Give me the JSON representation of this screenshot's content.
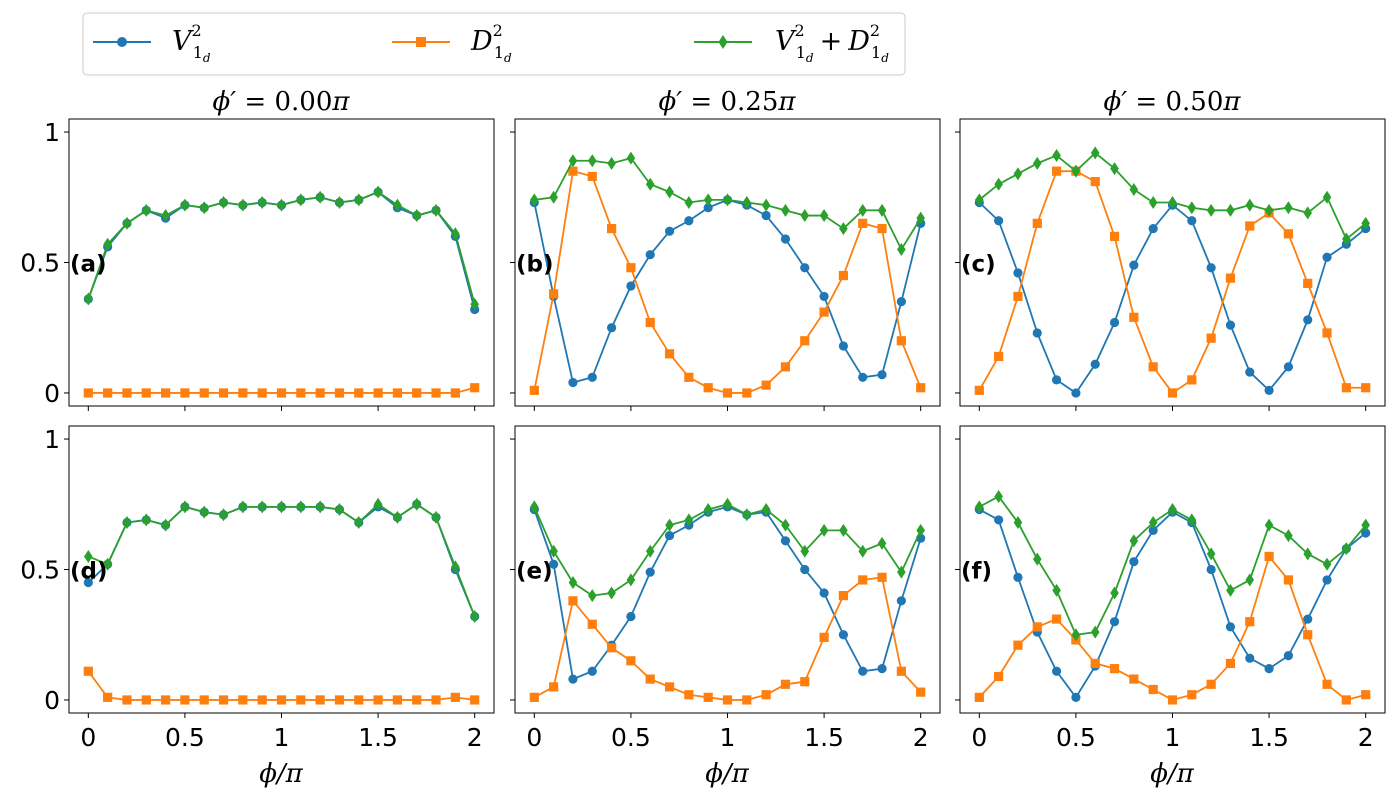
{
  "figure_title": "",
  "legend": [
    {
      "key": "V",
      "color": "#1f77b4",
      "marker": "circle",
      "text": {
        "base": "V",
        "sup": "2",
        "sub": "1",
        "subsub": "d"
      }
    },
    {
      "key": "D",
      "color": "#ff7f0e",
      "marker": "square",
      "text": {
        "base": "D",
        "sup": "2",
        "sub": "1",
        "subsub": "d"
      }
    },
    {
      "key": "S",
      "color": "#2ca02c",
      "marker": "diamond",
      "text": {
        "base": "V",
        "sup": "2",
        "sub": "1",
        "subsub": "d",
        "plus": "+",
        "base2": "D"
      }
    }
  ],
  "column_titles": [
    {
      "prefix": "ϕ′ = ",
      "value": "0.00",
      "suffix": "π"
    },
    {
      "prefix": "ϕ′ = ",
      "value": "0.25",
      "suffix": "π"
    },
    {
      "prefix": "ϕ′ = ",
      "value": "0.50",
      "suffix": "π"
    }
  ],
  "xlabel": "ϕ/π",
  "x_tick_labels": [
    "0",
    "0.5",
    "1",
    "1.5",
    "2"
  ],
  "y_tick_labels": [
    "0",
    "0.5",
    "1"
  ],
  "chart_data": [
    {
      "type": "line",
      "panel": "(a)",
      "x": [
        0,
        0.1,
        0.2,
        0.3,
        0.4,
        0.5,
        0.6,
        0.7,
        0.8,
        0.9,
        1.0,
        1.1,
        1.2,
        1.3,
        1.4,
        1.5,
        1.6,
        1.7,
        1.8,
        1.9,
        2.0
      ],
      "xlim": [
        -0.1,
        2.1
      ],
      "ylim": [
        -0.05,
        1.05
      ],
      "series": [
        {
          "name": "V",
          "values": [
            0.36,
            0.56,
            0.65,
            0.7,
            0.67,
            0.72,
            0.71,
            0.73,
            0.72,
            0.73,
            0.72,
            0.74,
            0.75,
            0.73,
            0.74,
            0.77,
            0.71,
            0.68,
            0.7,
            0.6,
            0.32
          ]
        },
        {
          "name": "D",
          "values": [
            0.0,
            0.0,
            0.0,
            0.0,
            0.0,
            0.0,
            0.0,
            0.0,
            0.0,
            0.0,
            0.0,
            0.0,
            0.0,
            0.0,
            0.0,
            0.0,
            0.0,
            0.0,
            0.0,
            0.0,
            0.02
          ]
        },
        {
          "name": "S",
          "values": [
            0.36,
            0.57,
            0.65,
            0.7,
            0.68,
            0.72,
            0.71,
            0.73,
            0.72,
            0.73,
            0.72,
            0.74,
            0.75,
            0.73,
            0.74,
            0.77,
            0.72,
            0.68,
            0.7,
            0.61,
            0.34
          ]
        }
      ]
    },
    {
      "type": "line",
      "panel": "(b)",
      "x": [
        0,
        0.1,
        0.2,
        0.3,
        0.4,
        0.5,
        0.6,
        0.7,
        0.8,
        0.9,
        1.0,
        1.1,
        1.2,
        1.3,
        1.4,
        1.5,
        1.6,
        1.7,
        1.8,
        1.9,
        2.0
      ],
      "xlim": [
        -0.1,
        2.1
      ],
      "ylim": [
        -0.05,
        1.05
      ],
      "series": [
        {
          "name": "V",
          "values": [
            0.73,
            0.37,
            0.04,
            0.06,
            0.25,
            0.41,
            0.53,
            0.62,
            0.66,
            0.71,
            0.74,
            0.72,
            0.68,
            0.59,
            0.48,
            0.37,
            0.18,
            0.06,
            0.07,
            0.35,
            0.65
          ]
        },
        {
          "name": "D",
          "values": [
            0.01,
            0.38,
            0.85,
            0.83,
            0.63,
            0.48,
            0.27,
            0.15,
            0.06,
            0.02,
            0.0,
            0.0,
            0.03,
            0.1,
            0.2,
            0.31,
            0.45,
            0.65,
            0.63,
            0.2,
            0.02
          ]
        },
        {
          "name": "S",
          "values": [
            0.74,
            0.75,
            0.89,
            0.89,
            0.88,
            0.9,
            0.8,
            0.77,
            0.73,
            0.74,
            0.74,
            0.73,
            0.72,
            0.7,
            0.68,
            0.68,
            0.63,
            0.7,
            0.7,
            0.55,
            0.67
          ]
        }
      ]
    },
    {
      "type": "line",
      "panel": "(c)",
      "x": [
        0,
        0.1,
        0.2,
        0.3,
        0.4,
        0.5,
        0.6,
        0.7,
        0.8,
        0.9,
        1.0,
        1.1,
        1.2,
        1.3,
        1.4,
        1.5,
        1.6,
        1.7,
        1.8,
        1.9,
        2.0
      ],
      "xlim": [
        -0.1,
        2.1
      ],
      "ylim": [
        -0.05,
        1.05
      ],
      "series": [
        {
          "name": "V",
          "values": [
            0.73,
            0.66,
            0.46,
            0.23,
            0.05,
            0.0,
            0.11,
            0.27,
            0.49,
            0.63,
            0.72,
            0.66,
            0.48,
            0.26,
            0.08,
            0.01,
            0.1,
            0.28,
            0.52,
            0.57,
            0.63
          ]
        },
        {
          "name": "D",
          "values": [
            0.01,
            0.14,
            0.37,
            0.65,
            0.85,
            0.85,
            0.81,
            0.6,
            0.29,
            0.1,
            0.0,
            0.05,
            0.21,
            0.44,
            0.64,
            0.69,
            0.61,
            0.42,
            0.23,
            0.02,
            0.02
          ]
        },
        {
          "name": "S",
          "values": [
            0.74,
            0.8,
            0.84,
            0.88,
            0.91,
            0.85,
            0.92,
            0.86,
            0.78,
            0.73,
            0.73,
            0.71,
            0.7,
            0.7,
            0.72,
            0.7,
            0.71,
            0.69,
            0.75,
            0.59,
            0.65
          ]
        }
      ]
    },
    {
      "type": "line",
      "panel": "(d)",
      "x": [
        0,
        0.1,
        0.2,
        0.3,
        0.4,
        0.5,
        0.6,
        0.7,
        0.8,
        0.9,
        1.0,
        1.1,
        1.2,
        1.3,
        1.4,
        1.5,
        1.6,
        1.7,
        1.8,
        1.9,
        2.0
      ],
      "xlim": [
        -0.1,
        2.1
      ],
      "ylim": [
        -0.05,
        1.05
      ],
      "series": [
        {
          "name": "V",
          "values": [
            0.45,
            0.52,
            0.68,
            0.69,
            0.67,
            0.74,
            0.72,
            0.71,
            0.74,
            0.74,
            0.74,
            0.74,
            0.74,
            0.73,
            0.68,
            0.74,
            0.7,
            0.75,
            0.7,
            0.5,
            0.32
          ]
        },
        {
          "name": "D",
          "values": [
            0.11,
            0.01,
            0.0,
            0.0,
            0.0,
            0.0,
            0.0,
            0.0,
            0.0,
            0.0,
            0.0,
            0.0,
            0.0,
            0.0,
            0.0,
            0.0,
            0.0,
            0.0,
            0.0,
            0.01,
            0.0
          ]
        },
        {
          "name": "S",
          "values": [
            0.55,
            0.52,
            0.68,
            0.69,
            0.67,
            0.74,
            0.72,
            0.71,
            0.74,
            0.74,
            0.74,
            0.74,
            0.74,
            0.73,
            0.68,
            0.75,
            0.7,
            0.75,
            0.7,
            0.51,
            0.32
          ]
        }
      ]
    },
    {
      "type": "line",
      "panel": "(e)",
      "x": [
        0,
        0.1,
        0.2,
        0.3,
        0.4,
        0.5,
        0.6,
        0.7,
        0.8,
        0.9,
        1.0,
        1.1,
        1.2,
        1.3,
        1.4,
        1.5,
        1.6,
        1.7,
        1.8,
        1.9,
        2.0
      ],
      "xlim": [
        -0.1,
        2.1
      ],
      "ylim": [
        -0.05,
        1.05
      ],
      "series": [
        {
          "name": "V",
          "values": [
            0.73,
            0.52,
            0.08,
            0.11,
            0.21,
            0.32,
            0.49,
            0.63,
            0.67,
            0.72,
            0.74,
            0.71,
            0.72,
            0.61,
            0.5,
            0.41,
            0.25,
            0.11,
            0.12,
            0.38,
            0.62
          ]
        },
        {
          "name": "D",
          "values": [
            0.01,
            0.05,
            0.38,
            0.29,
            0.2,
            0.15,
            0.08,
            0.05,
            0.02,
            0.01,
            0.0,
            0.0,
            0.02,
            0.06,
            0.07,
            0.24,
            0.4,
            0.46,
            0.47,
            0.11,
            0.03
          ]
        },
        {
          "name": "S",
          "values": [
            0.74,
            0.57,
            0.45,
            0.4,
            0.41,
            0.46,
            0.57,
            0.67,
            0.69,
            0.73,
            0.75,
            0.71,
            0.73,
            0.67,
            0.57,
            0.65,
            0.65,
            0.57,
            0.6,
            0.49,
            0.65
          ]
        }
      ]
    },
    {
      "type": "line",
      "panel": "(f)",
      "x": [
        0,
        0.1,
        0.2,
        0.3,
        0.4,
        0.5,
        0.6,
        0.7,
        0.8,
        0.9,
        1.0,
        1.1,
        1.2,
        1.3,
        1.4,
        1.5,
        1.6,
        1.7,
        1.8,
        1.9,
        2.0
      ],
      "xlim": [
        -0.1,
        2.1
      ],
      "ylim": [
        -0.05,
        1.05
      ],
      "series": [
        {
          "name": "V",
          "values": [
            0.73,
            0.69,
            0.47,
            0.26,
            0.11,
            0.01,
            0.13,
            0.3,
            0.53,
            0.65,
            0.72,
            0.68,
            0.5,
            0.28,
            0.16,
            0.12,
            0.17,
            0.31,
            0.46,
            0.58,
            0.64
          ]
        },
        {
          "name": "D",
          "values": [
            0.01,
            0.09,
            0.21,
            0.28,
            0.31,
            0.23,
            0.14,
            0.12,
            0.08,
            0.04,
            0.0,
            0.02,
            0.06,
            0.14,
            0.3,
            0.55,
            0.46,
            0.25,
            0.06,
            0.0,
            0.02
          ]
        },
        {
          "name": "S",
          "values": [
            0.74,
            0.78,
            0.68,
            0.54,
            0.42,
            0.25,
            0.26,
            0.41,
            0.61,
            0.68,
            0.73,
            0.69,
            0.56,
            0.42,
            0.46,
            0.67,
            0.63,
            0.56,
            0.52,
            0.58,
            0.67
          ]
        }
      ]
    }
  ]
}
